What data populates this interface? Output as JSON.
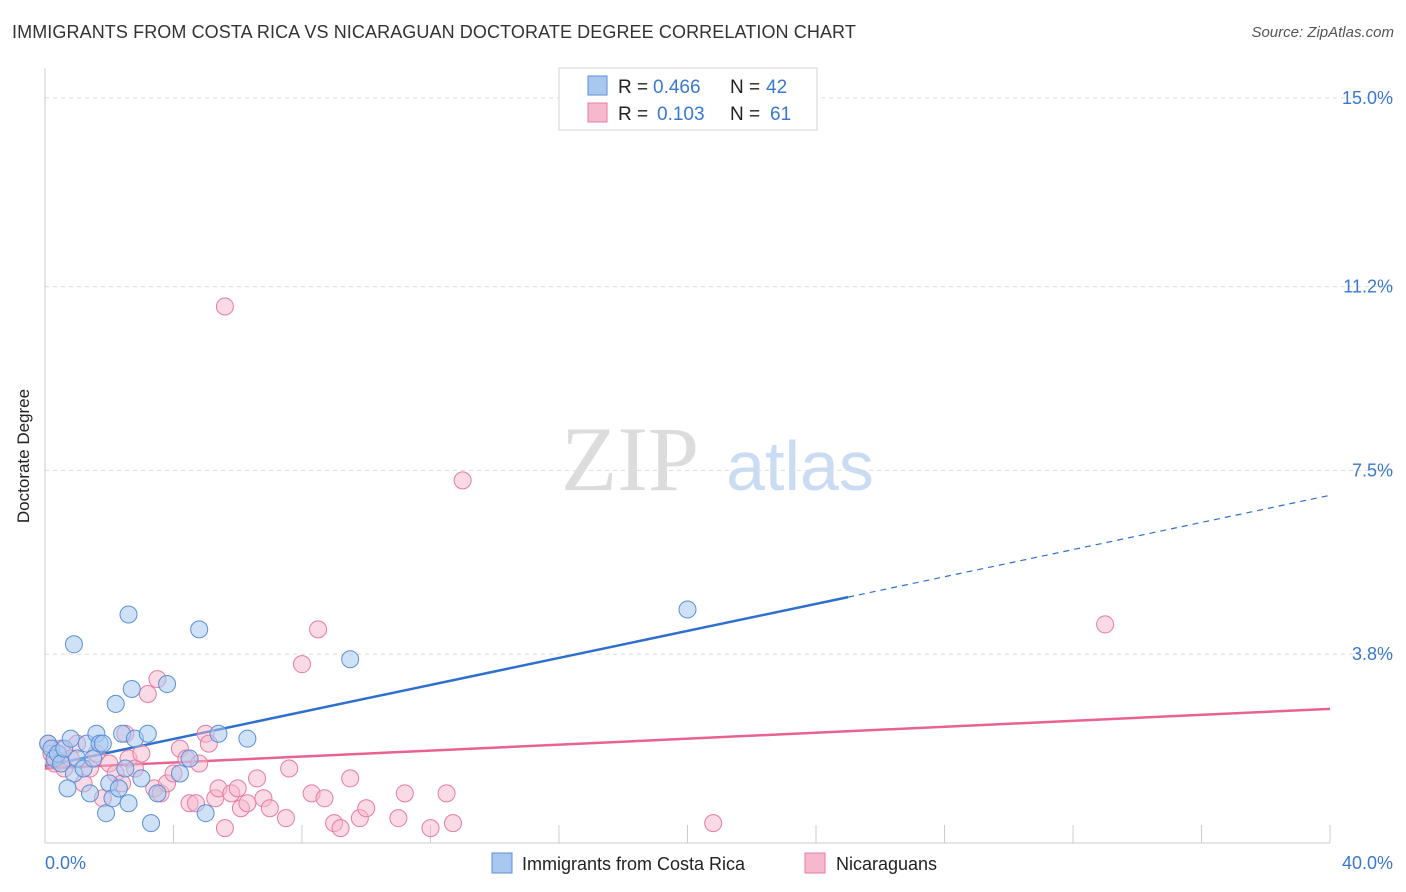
{
  "header": {
    "title": "IMMIGRANTS FROM COSTA RICA VS NICARAGUAN DOCTORATE DEGREE CORRELATION CHART",
    "source": "Source: ZipAtlas.com"
  },
  "watermark": {
    "zip": "ZIP",
    "atlas": "atlas"
  },
  "colors": {
    "blue_fill": "#a8c8f0",
    "blue_stroke": "#5b8fd6",
    "blue_line": "#2e6fd0",
    "pink_fill": "#f6b8cc",
    "pink_stroke": "#e87ba0",
    "pink_line": "#e8638f",
    "tick_label": "#3a78d0",
    "grid": "#dddddd"
  },
  "legend_top": {
    "rows": [
      {
        "r_label": "R =",
        "r_value": "0.466",
        "n_label": "N =",
        "n_value": "42"
      },
      {
        "r_label": "R =",
        "r_value": "0.103",
        "n_label": "N =",
        "n_value": "61"
      }
    ]
  },
  "legend_bottom": {
    "items": [
      "Immigrants from Costa Rica",
      "Nicaraguans"
    ]
  },
  "chart_data": {
    "type": "scatter",
    "title": "IMMIGRANTS FROM COSTA RICA VS NICARAGUAN DOCTORATE DEGREE CORRELATION CHART",
    "xlabel": "",
    "ylabel": "Doctorate Degree",
    "xlim": [
      0,
      40
    ],
    "ylim": [
      0,
      15.4
    ],
    "x_tick_labels": [
      "0.0%",
      "40.0%"
    ],
    "x_tick_values": [
      0,
      40
    ],
    "y_tick_labels": [
      "3.8%",
      "7.5%",
      "11.2%",
      "15.0%"
    ],
    "y_tick_values": [
      3.8,
      7.5,
      11.2,
      15.0
    ],
    "grid": true,
    "series": [
      {
        "name": "Immigrants from Costa Rica",
        "r": 0.466,
        "n": 42,
        "trend": {
          "x0": 0,
          "y0": 1.55,
          "x1": 25,
          "y1": 4.95,
          "dash_to_x": 40,
          "dash_to_y": 7.0
        },
        "points": [
          [
            0.1,
            2.0
          ],
          [
            0.2,
            1.9
          ],
          [
            0.3,
            1.7
          ],
          [
            0.4,
            1.8
          ],
          [
            0.5,
            1.6
          ],
          [
            0.6,
            1.9
          ],
          [
            0.8,
            2.1
          ],
          [
            0.9,
            1.4
          ],
          [
            1.0,
            1.7
          ],
          [
            0.7,
            1.1
          ],
          [
            1.2,
            1.5
          ],
          [
            1.3,
            2.0
          ],
          [
            1.4,
            1.0
          ],
          [
            1.5,
            1.7
          ],
          [
            1.6,
            2.2
          ],
          [
            1.7,
            2.0
          ],
          [
            1.8,
            2.0
          ],
          [
            1.9,
            0.6
          ],
          [
            2.0,
            1.2
          ],
          [
            2.1,
            0.9
          ],
          [
            2.2,
            2.8
          ],
          [
            2.3,
            1.1
          ],
          [
            2.4,
            2.2
          ],
          [
            2.5,
            1.5
          ],
          [
            2.6,
            0.8
          ],
          [
            2.7,
            3.1
          ],
          [
            2.8,
            2.1
          ],
          [
            3.0,
            1.3
          ],
          [
            3.2,
            2.2
          ],
          [
            3.3,
            0.4
          ],
          [
            3.5,
            1.0
          ],
          [
            3.8,
            3.2
          ],
          [
            4.2,
            1.4
          ],
          [
            4.5,
            1.7
          ],
          [
            4.8,
            4.3
          ],
          [
            5.0,
            0.6
          ],
          [
            5.4,
            2.2
          ],
          [
            6.3,
            2.1
          ],
          [
            9.5,
            3.7
          ],
          [
            2.6,
            4.6
          ],
          [
            0.9,
            4.0
          ],
          [
            20.0,
            4.7
          ]
        ]
      },
      {
        "name": "Nicaraguans",
        "r": 0.103,
        "n": 61,
        "trend": {
          "x0": 0,
          "y0": 1.5,
          "x1": 40,
          "y1": 2.7
        },
        "points": [
          [
            0.1,
            2.0
          ],
          [
            0.2,
            1.8
          ],
          [
            0.3,
            1.6
          ],
          [
            0.5,
            1.9
          ],
          [
            0.6,
            1.5
          ],
          [
            0.8,
            1.7
          ],
          [
            1.0,
            2.0
          ],
          [
            1.2,
            1.2
          ],
          [
            1.4,
            1.5
          ],
          [
            1.6,
            1.8
          ],
          [
            1.8,
            0.9
          ],
          [
            2.0,
            1.6
          ],
          [
            2.2,
            1.4
          ],
          [
            2.4,
            1.2
          ],
          [
            2.5,
            2.2
          ],
          [
            2.6,
            1.7
          ],
          [
            2.8,
            1.5
          ],
          [
            3.0,
            1.8
          ],
          [
            3.2,
            3.0
          ],
          [
            3.4,
            1.1
          ],
          [
            3.5,
            3.3
          ],
          [
            3.6,
            1.0
          ],
          [
            3.8,
            1.2
          ],
          [
            4.0,
            1.4
          ],
          [
            4.2,
            1.9
          ],
          [
            4.4,
            1.7
          ],
          [
            4.5,
            0.8
          ],
          [
            4.7,
            0.8
          ],
          [
            4.8,
            1.6
          ],
          [
            5.0,
            2.2
          ],
          [
            5.1,
            2.0
          ],
          [
            5.3,
            0.9
          ],
          [
            5.4,
            1.1
          ],
          [
            5.6,
            0.3
          ],
          [
            5.8,
            1.0
          ],
          [
            6.0,
            1.1
          ],
          [
            6.1,
            0.7
          ],
          [
            6.3,
            0.8
          ],
          [
            6.6,
            1.3
          ],
          [
            6.8,
            0.9
          ],
          [
            7.0,
            0.7
          ],
          [
            7.5,
            0.5
          ],
          [
            7.6,
            1.5
          ],
          [
            8.0,
            3.6
          ],
          [
            8.3,
            1.0
          ],
          [
            8.5,
            4.3
          ],
          [
            8.7,
            0.9
          ],
          [
            9.0,
            0.4
          ],
          [
            9.2,
            0.3
          ],
          [
            9.5,
            1.3
          ],
          [
            9.8,
            0.5
          ],
          [
            10.0,
            0.7
          ],
          [
            11.0,
            0.5
          ],
          [
            11.2,
            1.0
          ],
          [
            12.0,
            0.3
          ],
          [
            12.5,
            1.0
          ],
          [
            12.7,
            0.4
          ],
          [
            13.0,
            7.3
          ],
          [
            5.6,
            10.8
          ],
          [
            20.8,
            0.4
          ],
          [
            33.0,
            4.4
          ]
        ]
      }
    ]
  }
}
